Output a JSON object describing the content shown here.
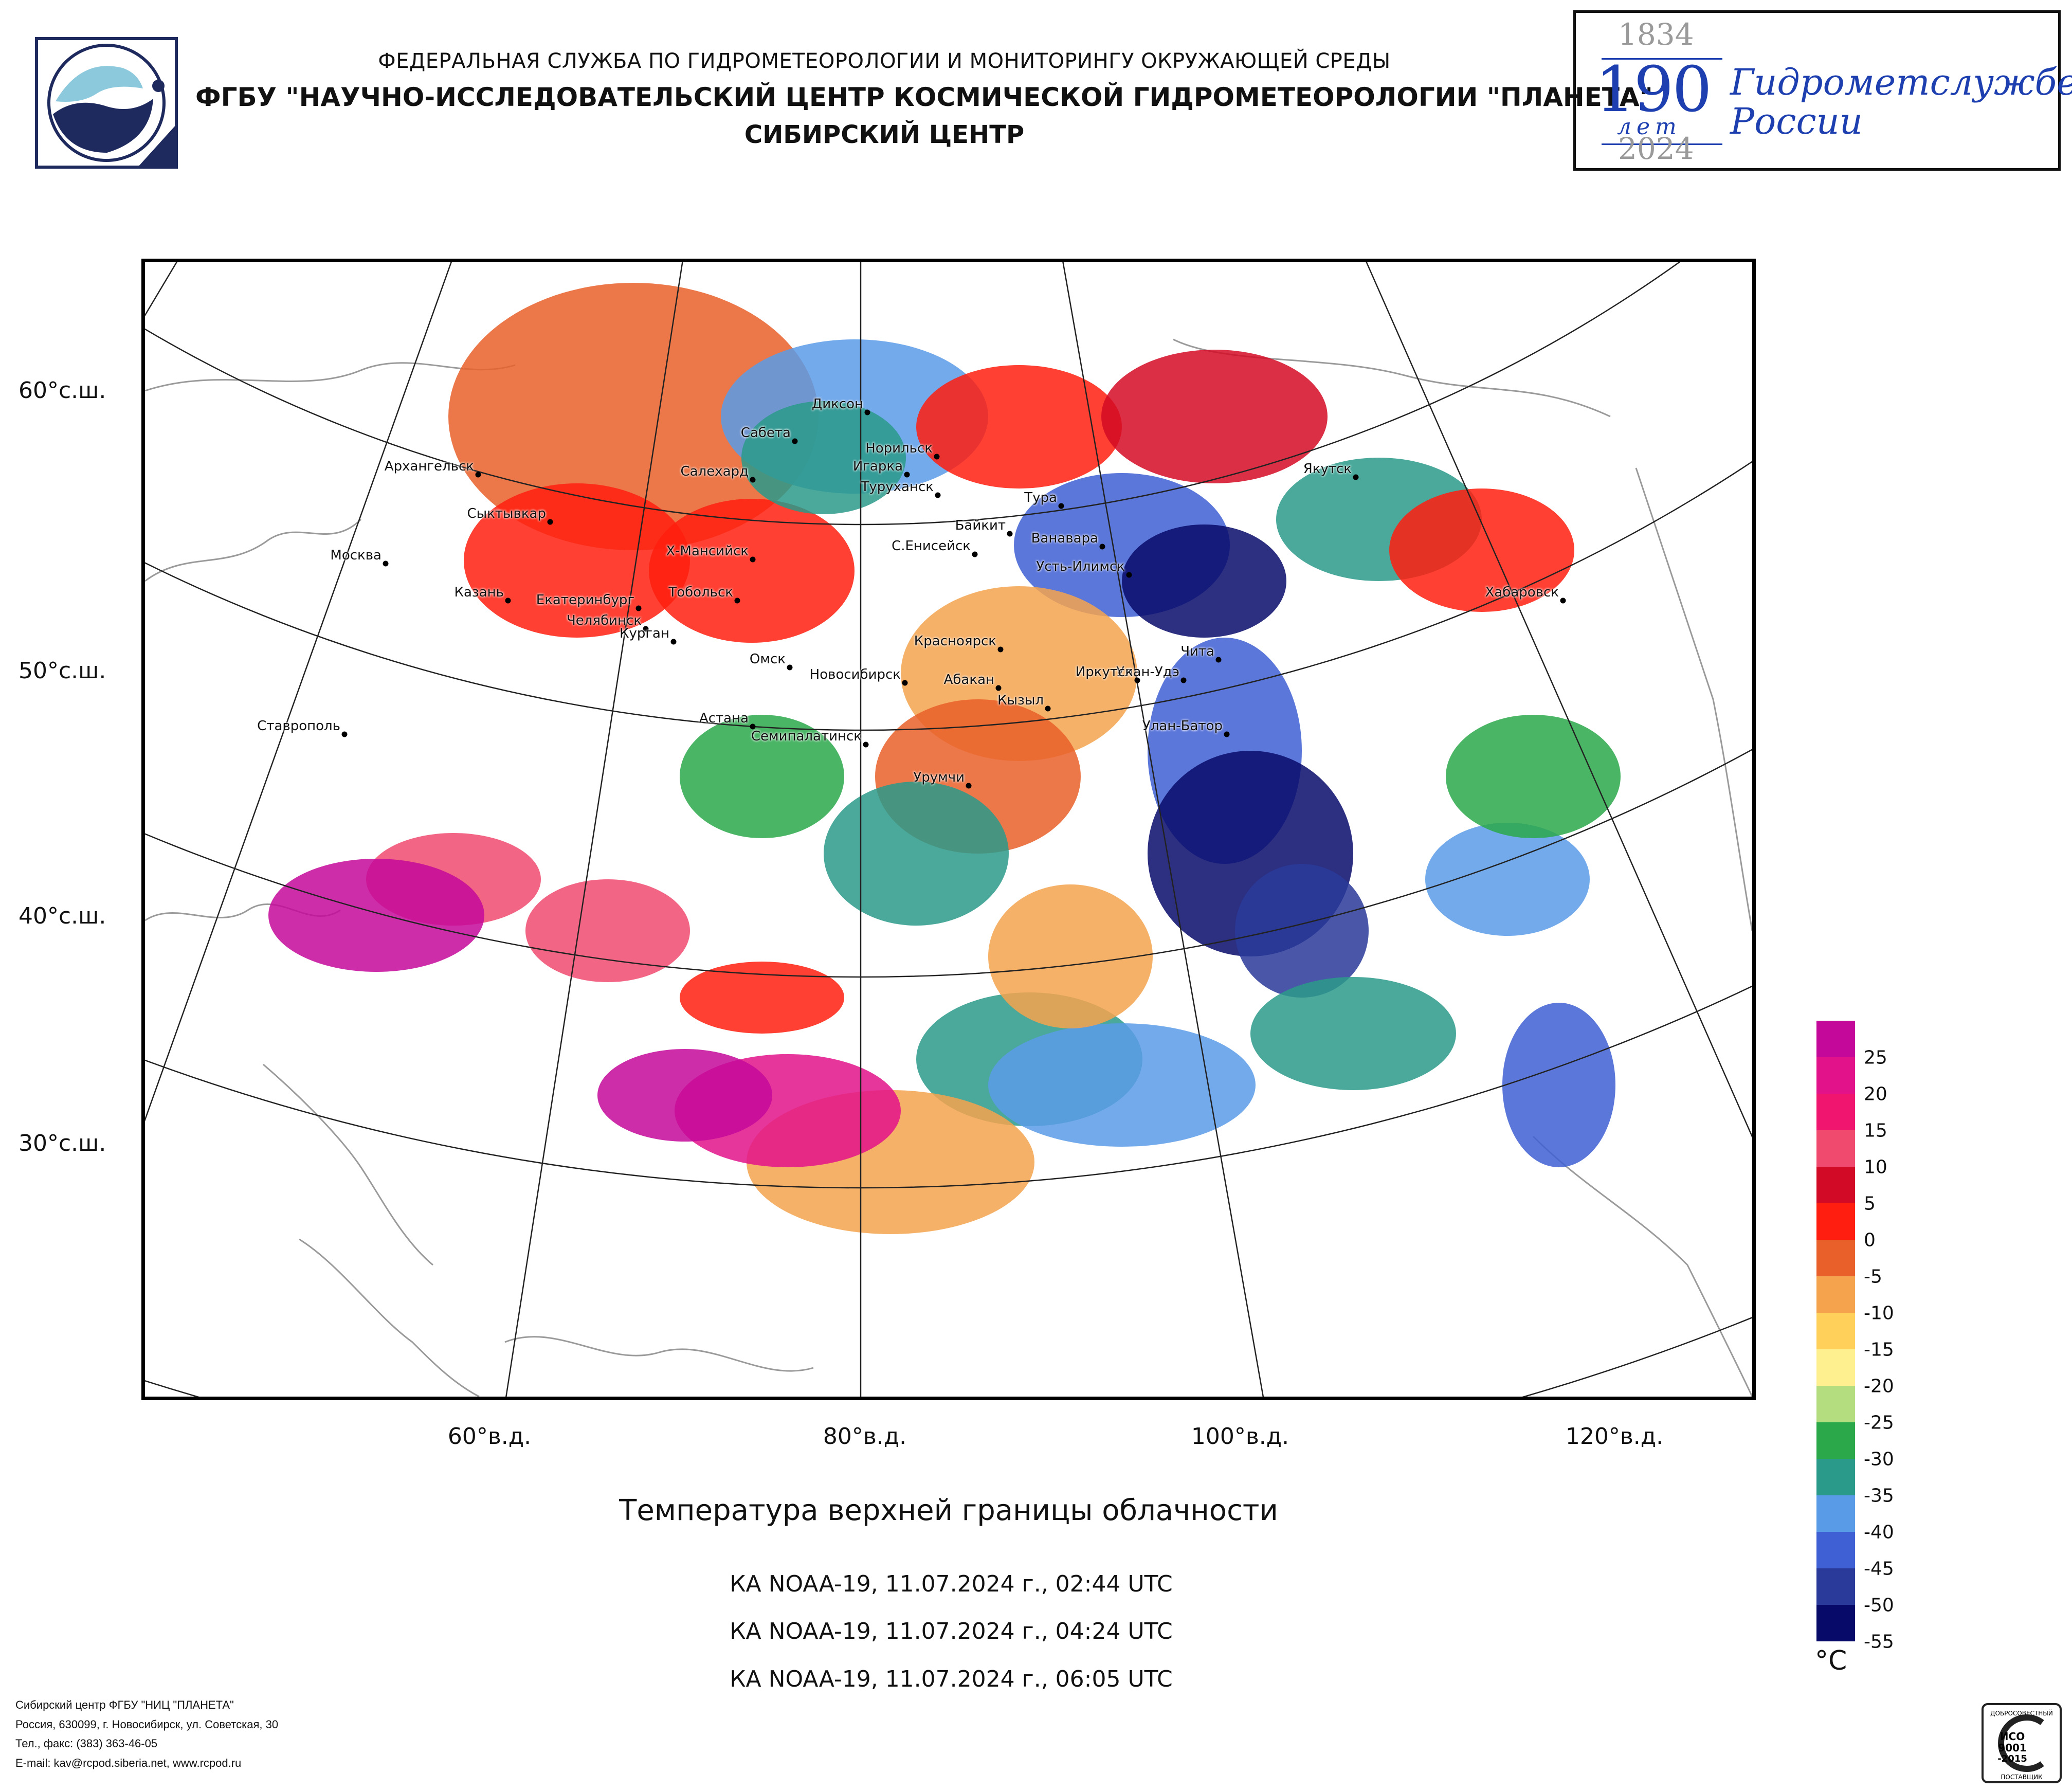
{
  "header": {
    "line1": "ФЕДЕРАЛЬНАЯ СЛУЖБА ПО ГИДРОМЕТЕОРОЛОГИИ И МОНИТОРИНГУ ОКРУЖАЮЩЕЙ СРЕДЫ",
    "line2": "ФГБУ \"НАУЧНО-ИССЛЕДОВАТЕЛЬСКИЙ ЦЕНТР КОСМИЧЕСКОЙ ГИДРОМЕТЕОРОЛОГИИ \"ПЛАНЕТА\"",
    "line3": "СИБИРСКИЙ ЦЕНТР"
  },
  "anniversary": {
    "year_start": "1834",
    "number": "190",
    "years_word": "лет",
    "year_end": "2024",
    "text_line1": "Гидрометслужбе",
    "text_line2": "России"
  },
  "map": {
    "lat_labels": [
      "60°с.ш.",
      "50°с.ш.",
      "40°с.ш.",
      "30°с.ш."
    ],
    "lon_labels": [
      "60°в.д.",
      "80°в.д.",
      "100°в.д.",
      "120°в.д."
    ],
    "cities": [
      "Диксон",
      "Сабета",
      "Норильск",
      "Архангельск",
      "Салехард",
      "Игарка",
      "Туруханск",
      "Якутск",
      "Тура",
      "Сыктывкар",
      "Байкит",
      "Ванавара",
      "Х-Мансийск",
      "С.Енисейск",
      "Москва",
      "Усть-Илимск",
      "Хабаровск",
      "Казань",
      "Тобольск",
      "Екатеринбург",
      "Челябинск",
      "Курган",
      "Красноярск",
      "Чита",
      "Омск",
      "Новосибирск",
      "Абакан",
      "Улан-Удэ",
      "Иркутск",
      "Кызыл",
      "Астана",
      "Ставрополь",
      "Улан-Батор",
      "Семипалатинск",
      "Урумчи"
    ]
  },
  "legend": {
    "colors": [
      "#c4089a",
      "#e2128a",
      "#f0156f",
      "#f04a6e",
      "#d30a25",
      "#ff1e0f",
      "#e9602a",
      "#f5a34d",
      "#ffd05a",
      "#fff08f",
      "#b4dd80",
      "#2aa84a",
      "#2a9a8a",
      "#5a9be8",
      "#3f5fd4",
      "#2a3a9a",
      "#080a6a"
    ],
    "ticks": [
      "25",
      "20",
      "15",
      "10",
      "5",
      "0",
      "-5",
      "-10",
      "-15",
      "-20",
      "-25",
      "-30",
      "-35",
      "-40",
      "-45",
      "-50",
      "-55"
    ],
    "unit": "°C"
  },
  "title": "Температура верхней границы облачности",
  "passes": [
    "КА NOAA-19, 11.07.2024 г., 02:44 UTC",
    "КА NOAA-19, 11.07.2024 г., 04:24 UTC",
    "КА NOAA-19, 11.07.2024 г., 06:05 UTC"
  ],
  "footer": {
    "line1": "Сибирский центр ФГБУ \"НИЦ \"ПЛАНЕТА\"",
    "line2": "Россия, 630099, г. Новосибирск, ул. Советская, 30",
    "line3": "Тел., факс: (383) 363-46-05",
    "line4": "E-mail: kav@rcpod.siberia.net, www.rcpod.ru"
  },
  "iso_badge": {
    "top": "ДОБРОСОВЕСТНЫЙ",
    "l1": "ИСО",
    "l2": "9001",
    "l3": "-2015",
    "bottom": "ПОСТАВЩИК"
  }
}
